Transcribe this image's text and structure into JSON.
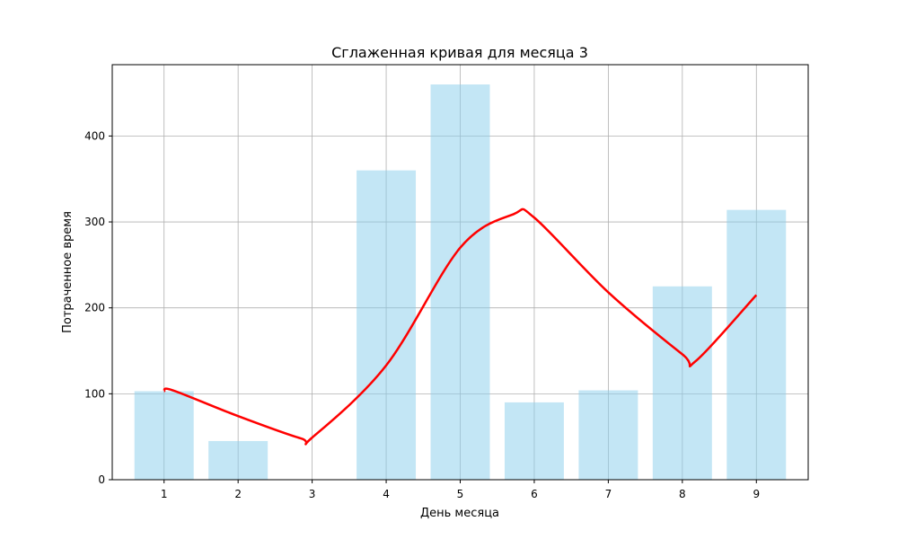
{
  "chart_data": {
    "type": "bar",
    "title": "Сглаженная кривая для месяца 3",
    "xlabel": "День месяца",
    "ylabel": "Потраченное время",
    "categories": [
      "1",
      "2",
      "3",
      "4",
      "5",
      "6",
      "7",
      "8",
      "9"
    ],
    "values": [
      103,
      45,
      0,
      360,
      460,
      90,
      104,
      225,
      314
    ],
    "smoothed_curve": {
      "x": [
        1,
        1.12,
        2,
        2.85,
        3,
        4,
        5,
        5.72,
        6,
        7,
        8,
        8.18,
        9
      ],
      "y": [
        103,
        104,
        74,
        48,
        49,
        133,
        270,
        309,
        305,
        218,
        146,
        138,
        215
      ]
    },
    "yticks": [
      0,
      100,
      200,
      300,
      400
    ],
    "ylim": [
      0,
      483
    ],
    "xlim": [
      0.3,
      9.7
    ],
    "grid": true,
    "colors": {
      "bar": "#87ceeb",
      "bar_opacity": 0.5,
      "curve": "#ff0000",
      "grid": "#b0b0b0"
    }
  }
}
